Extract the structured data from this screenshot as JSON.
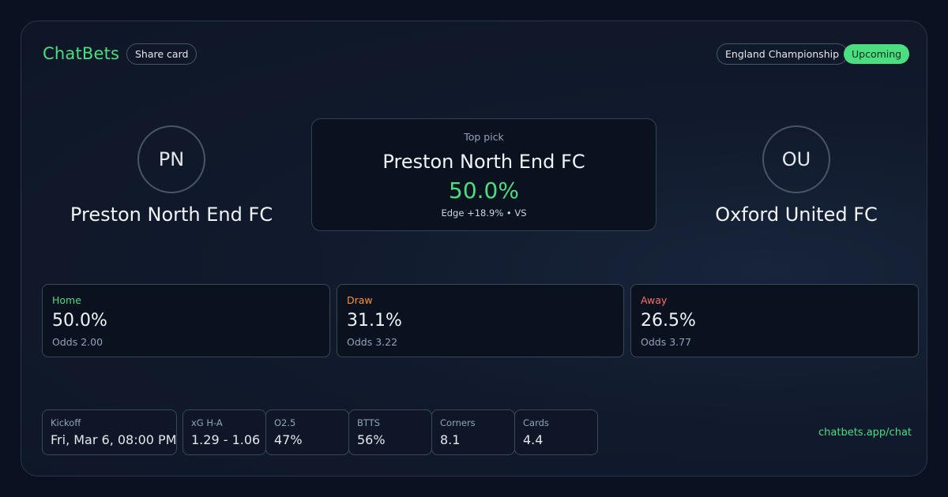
{
  "header": {
    "brand": "ChatBets",
    "share_label": "Share card",
    "league": "England Championship",
    "status": "Upcoming"
  },
  "home_team": {
    "initials": "PN",
    "name": "Preston North End FC"
  },
  "away_team": {
    "initials": "OU",
    "name": "Oxford United FC"
  },
  "top_pick": {
    "label": "Top pick",
    "team": "Preston North End FC",
    "probability": "50.0%",
    "edge": "Edge +18.9% • VS"
  },
  "outcomes": [
    {
      "label": "Home",
      "value": "50.0%",
      "odds": "Odds 2.00",
      "color": "#4ade80"
    },
    {
      "label": "Draw",
      "value": "31.1%",
      "odds": "Odds 3.22",
      "color": "#fb923c"
    },
    {
      "label": "Away",
      "value": "26.5%",
      "odds": "Odds 3.77",
      "color": "#f87171"
    }
  ],
  "stats": [
    {
      "label": "Kickoff",
      "value": "Fri, Mar 6, 08:00 PM"
    },
    {
      "label": "xG H-A",
      "value": "1.29 - 1.06"
    },
    {
      "label": "O2.5",
      "value": "47%"
    },
    {
      "label": "BTTS",
      "value": "56%"
    },
    {
      "label": "Corners",
      "value": "8.1"
    },
    {
      "label": "Cards",
      "value": "4.4"
    }
  ],
  "footer": {
    "link": "chatbets.app/chat"
  },
  "colors": {
    "accent": "#4ade80",
    "draw": "#fb923c",
    "away": "#f87171"
  }
}
